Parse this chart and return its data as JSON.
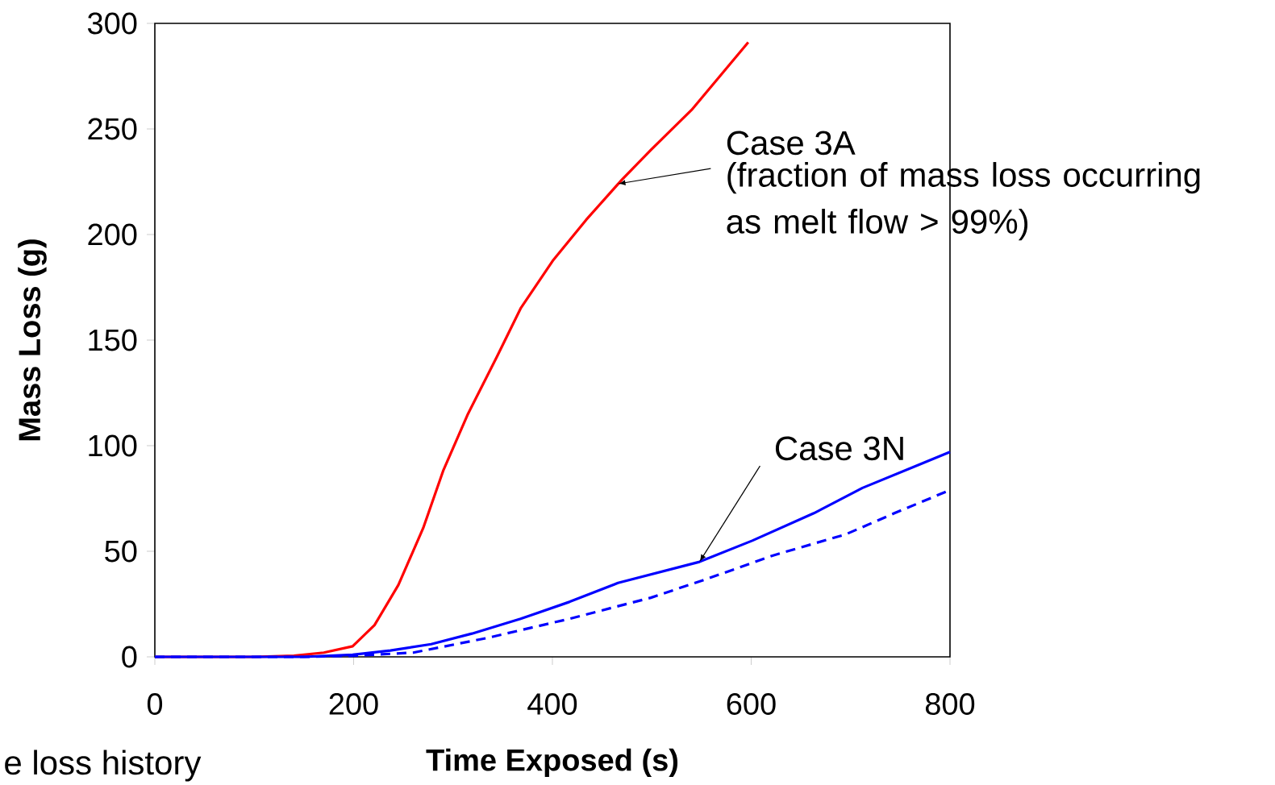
{
  "chart_data": {
    "type": "line",
    "xlabel": "Time Exposed (s)",
    "ylabel": "Mass Loss (g)",
    "xlim": [
      0,
      800
    ],
    "ylim": [
      0,
      300
    ],
    "xticks": [
      0,
      200,
      400,
      600,
      800
    ],
    "yticks": [
      0,
      50,
      100,
      150,
      200,
      250,
      300
    ],
    "grid": false,
    "legend": false,
    "marker": "none",
    "series": [
      {
        "color": "#ff0000",
        "line_style": "solid",
        "x": [
          0,
          100,
          140,
          170,
          199,
          221,
          245,
          270,
          290,
          315,
          344,
          368,
          401,
          434,
          470,
          499,
          540,
          597
        ],
        "values": [
          0,
          0,
          0.5,
          2,
          5,
          15,
          34,
          61,
          88,
          115,
          142,
          165,
          188,
          207,
          226,
          240,
          259,
          291
        ]
      },
      {
        "color": "#0000ff",
        "line_style": "solid",
        "x": [
          0,
          150,
          199,
          237,
          278,
          319,
          368,
          417,
          466,
          548,
          601,
          663,
          712,
          769,
          800
        ],
        "values": [
          0,
          0,
          1,
          3,
          6,
          11,
          18,
          26,
          35,
          45,
          55,
          68,
          80,
          91,
          97
        ]
      },
      {
        "color": "#0000ff",
        "line_style": "dashed",
        "x": [
          0,
          150,
          199,
          260,
          335,
          417,
          499,
          556,
          622,
          695,
          744,
          800
        ],
        "values": [
          0,
          0,
          0.5,
          2,
          9,
          18,
          28,
          37,
          48,
          58,
          68,
          79
        ]
      }
    ],
    "annotations": [
      {
        "text": "Case 3A",
        "x": 466,
        "y": 224
      },
      "(fraction of mass loss occurring as melt flow > 99%)",
      {
        "text": "Case 3N",
        "x": 548,
        "y": 45
      },
      "e loss history"
    ]
  }
}
